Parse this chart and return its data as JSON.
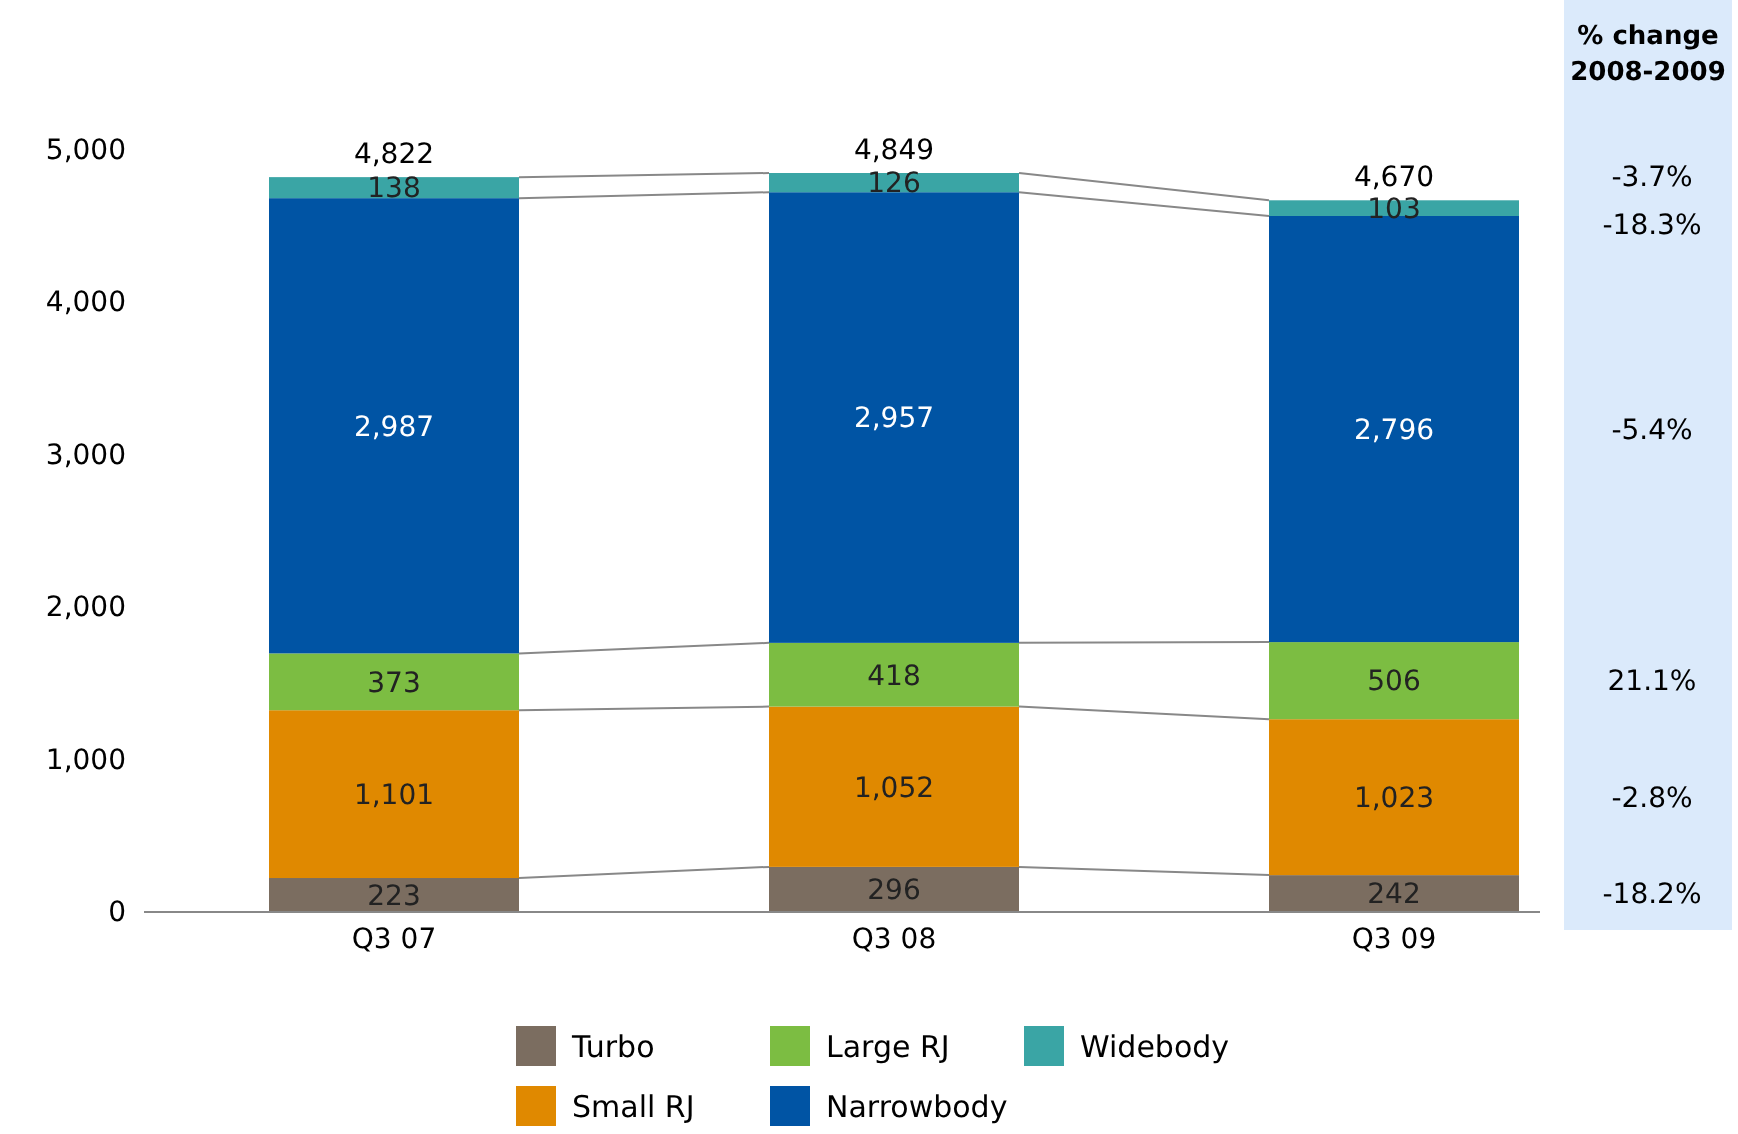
{
  "chart_data": {
    "type": "bar",
    "stacked": true,
    "categories": [
      "Q3 07",
      "Q3 08",
      "Q3 09"
    ],
    "series": [
      {
        "name": "Turbo",
        "color": "#7b6d60",
        "values": [
          223,
          296,
          242
        ],
        "value_labels": [
          "223",
          "296",
          "242"
        ]
      },
      {
        "name": "Small RJ",
        "color": "#e08900",
        "values": [
          1101,
          1052,
          1023
        ],
        "value_labels": [
          "1,101",
          "1,052",
          "1,023"
        ]
      },
      {
        "name": "Large RJ",
        "color": "#7cbd42",
        "values": [
          373,
          418,
          506
        ],
        "value_labels": [
          "373",
          "418",
          "506"
        ]
      },
      {
        "name": "Narrowbody",
        "color": "#0054a4",
        "values": [
          2987,
          2957,
          2796
        ],
        "value_labels": [
          "2,987",
          "2,957",
          "2,796"
        ]
      },
      {
        "name": "Widebody",
        "color": "#3aa5a5",
        "values": [
          138,
          126,
          103
        ],
        "value_labels": [
          "138",
          "126",
          "103"
        ]
      }
    ],
    "ylim": [
      0,
      5000
    ],
    "yticks": [
      {
        "value": 0,
        "label": "0"
      },
      {
        "value": 1000,
        "label": "1,000"
      },
      {
        "value": 2000,
        "label": "2,000"
      },
      {
        "value": 3000,
        "label": "3,000"
      },
      {
        "value": 4000,
        "label": "4,000"
      },
      {
        "value": 5000,
        "label": "5,000"
      }
    ],
    "totals": [
      "4,822",
      "4,849",
      "4,670"
    ],
    "annotations": [
      "% change 2008-2009",
      "-3.7%",
      "-18.3%",
      "-5.4%",
      "21.1%",
      "-2.8%",
      "-18.2%"
    ],
    "legend": "bottom",
    "grid": false
  }
}
